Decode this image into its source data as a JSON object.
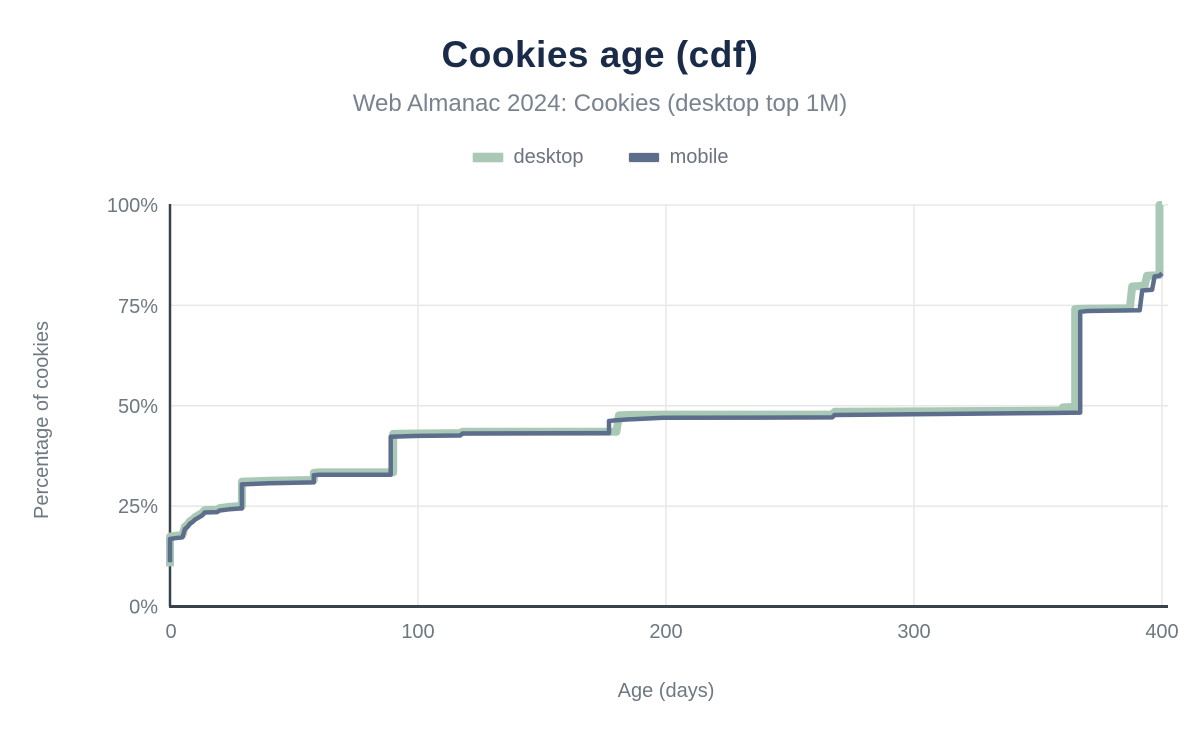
{
  "header": {
    "title": "Cookies age (cdf)",
    "subtitle": "Web Almanac 2024: Cookies (desktop top 1M)"
  },
  "legend": {
    "items": [
      {
        "label": "desktop",
        "color": "#a9c8b6"
      },
      {
        "label": "mobile",
        "color": "#5d6e8c"
      }
    ]
  },
  "colors": {
    "title": "#1a2b49",
    "subtitle": "#79828f",
    "tick_text": "#6e7881",
    "gridline": "#e7e7e7",
    "axis_line": "#37424c",
    "desktop_line": "#a9c8b6",
    "mobile_line": "#5d6e8c"
  },
  "chart_data": {
    "type": "line",
    "subtype": "cdf-step",
    "title": "Cookies age (cdf)",
    "subtitle": "Web Almanac 2024: Cookies (desktop top 1M)",
    "xlabel": "Age (days)",
    "ylabel": "Percentage of cookies",
    "xlim": [
      0,
      400
    ],
    "ylim": [
      0,
      100
    ],
    "x_ticks": [
      0,
      100,
      200,
      300,
      400
    ],
    "y_ticks": [
      0,
      25,
      50,
      75,
      100
    ],
    "x_tick_labels": [
      "0",
      "100",
      "200",
      "300",
      "400"
    ],
    "y_tick_labels": [
      "0%",
      "25%",
      "50%",
      "75%",
      "100%"
    ],
    "grid": true,
    "legend_position": "top",
    "series": [
      {
        "name": "desktop",
        "color": "#a9c8b6",
        "stroke_width": 8,
        "points": [
          [
            0,
            10
          ],
          [
            0,
            17.4
          ],
          [
            2,
            17.6
          ],
          [
            5,
            17.8
          ],
          [
            6,
            19.9
          ],
          [
            7,
            20.4
          ],
          [
            8,
            21.2
          ],
          [
            9,
            21.6
          ],
          [
            10,
            22.2
          ],
          [
            13,
            23.3
          ],
          [
            14,
            24.0
          ],
          [
            19,
            24.1
          ],
          [
            20,
            24.5
          ],
          [
            24,
            24.8
          ],
          [
            28,
            25.0
          ],
          [
            29,
            25.0
          ],
          [
            29,
            31.1
          ],
          [
            40,
            31.3
          ],
          [
            58,
            31.5
          ],
          [
            58,
            33.3
          ],
          [
            60,
            33.4
          ],
          [
            90,
            33.4
          ],
          [
            90,
            43.0
          ],
          [
            100,
            43.1
          ],
          [
            117,
            43.2
          ],
          [
            118,
            43.5
          ],
          [
            180,
            43.5
          ],
          [
            181,
            47.6
          ],
          [
            185,
            47.7
          ],
          [
            199,
            47.8
          ],
          [
            267,
            47.8
          ],
          [
            268,
            48.5
          ],
          [
            300,
            48.6
          ],
          [
            358,
            48.8
          ],
          [
            360,
            48.8
          ],
          [
            360,
            49.6
          ],
          [
            365,
            49.7
          ],
          [
            365,
            74.1
          ],
          [
            370,
            74.2
          ],
          [
            387,
            74.3
          ],
          [
            388,
            79.7
          ],
          [
            393,
            79.9
          ],
          [
            394,
            82.4
          ],
          [
            398,
            82.5
          ],
          [
            399,
            82.6
          ],
          [
            399,
            100
          ],
          [
            400,
            100
          ]
        ]
      },
      {
        "name": "mobile",
        "color": "#5d6e8c",
        "stroke_width": 4.5,
        "points": [
          [
            0,
            11
          ],
          [
            0,
            16.8
          ],
          [
            2,
            17.0
          ],
          [
            5,
            17.2
          ],
          [
            6,
            19.3
          ],
          [
            7,
            19.8
          ],
          [
            8,
            20.6
          ],
          [
            9,
            21.0
          ],
          [
            10,
            21.6
          ],
          [
            13,
            22.7
          ],
          [
            14,
            23.4
          ],
          [
            19,
            23.5
          ],
          [
            20,
            23.9
          ],
          [
            24,
            24.2
          ],
          [
            28,
            24.4
          ],
          [
            29,
            24.4
          ],
          [
            29,
            30.4
          ],
          [
            40,
            30.7
          ],
          [
            58,
            30.9
          ],
          [
            58,
            32.7
          ],
          [
            60,
            32.8
          ],
          [
            89,
            32.8
          ],
          [
            89,
            42.3
          ],
          [
            100,
            42.5
          ],
          [
            117,
            42.6
          ],
          [
            118,
            43.1
          ],
          [
            176,
            43.2
          ],
          [
            177,
            43.2
          ],
          [
            177,
            46.2
          ],
          [
            180,
            46.4
          ],
          [
            185,
            46.6
          ],
          [
            199,
            47.0
          ],
          [
            267,
            47.1
          ],
          [
            268,
            47.7
          ],
          [
            300,
            47.9
          ],
          [
            355,
            48.2
          ],
          [
            367,
            48.3
          ],
          [
            367,
            73.4
          ],
          [
            370,
            73.6
          ],
          [
            391,
            73.8
          ],
          [
            392,
            78.7
          ],
          [
            396,
            78.9
          ],
          [
            397,
            82.2
          ],
          [
            399,
            82.4
          ],
          [
            400,
            83.0
          ]
        ]
      }
    ]
  }
}
